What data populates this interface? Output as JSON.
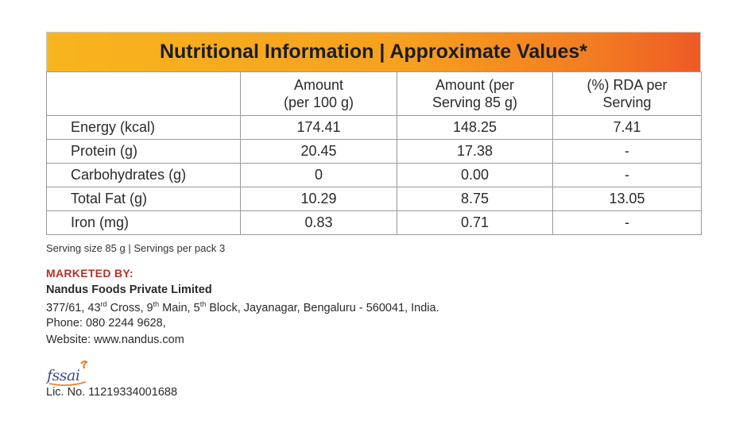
{
  "banner": {
    "title": "Nutritional Information | Approximate Values*"
  },
  "table": {
    "headers": [
      "",
      "Amount\n(per 100 g)",
      "Amount (per\nServing 85 g)",
      "(%) RDA per\nServing"
    ],
    "header_lines": [
      [],
      [
        "Amount",
        "(per 100 g)"
      ],
      [
        "Amount (per",
        "Serving 85 g)"
      ],
      [
        "(%) RDA per",
        "Serving"
      ]
    ],
    "rows": [
      [
        "Energy (kcal)",
        "174.41",
        "148.25",
        "7.41"
      ],
      [
        "Protein (g)",
        "20.45",
        "17.38",
        "-"
      ],
      [
        "Carbohydrates (g)",
        "0",
        "0.00",
        "-"
      ],
      [
        "Total Fat (g)",
        "10.29",
        "8.75",
        "13.05"
      ],
      [
        "Iron (mg)",
        "0.83",
        "0.71",
        "-"
      ]
    ]
  },
  "serving_note": "Serving size 85 g | Servings per pack 3",
  "marketed_by": {
    "label": "MARKETED BY:",
    "company": "Nandus Foods Private Limited",
    "address_parts": {
      "a1": "377/61, 43",
      "s1": "rd",
      "a2": " Cross, 9",
      "s2": "th",
      "a3": " Main, 5",
      "s3": "th",
      "a4": " Block, Jayanagar, Bengaluru - 560041, India."
    },
    "phone": "Phone: 080 2244 9628,",
    "website": "Website: www.nandus.com"
  },
  "fssai": {
    "logo_text": "fssai",
    "license": "Lic. No. 11219334001688"
  },
  "colors": {
    "banner_start": "#f7b51e",
    "banner_end": "#ee5a24",
    "marketed_label": "#b4322b",
    "fssai_orange": "#e8862a"
  }
}
